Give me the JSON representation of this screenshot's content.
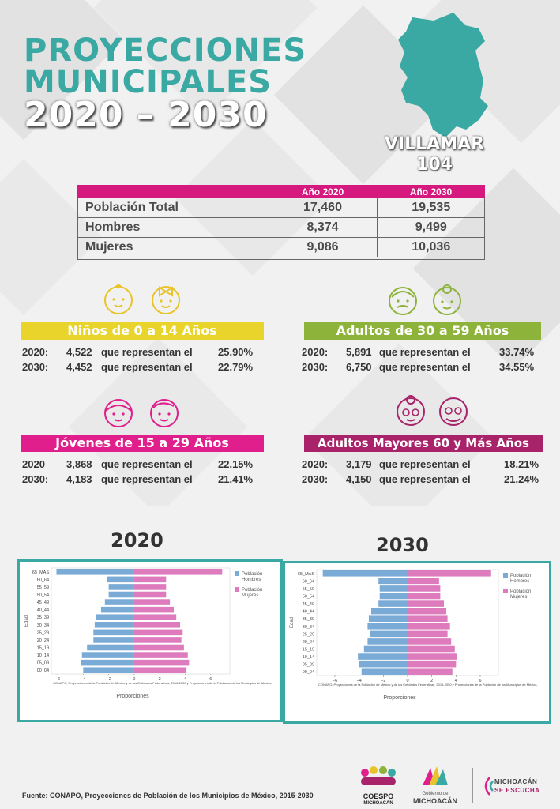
{
  "title": {
    "line1": "PROYECCIONES",
    "line2": "MUNICIPALES",
    "line3": "2020 – 2030"
  },
  "municipality": {
    "name": "VILLAMAR",
    "code": "104"
  },
  "table": {
    "headers": [
      "Año 2020",
      "Año 2030"
    ],
    "rows": [
      {
        "label": "Población Total",
        "y2020": "17,460",
        "y2030": "19,535"
      },
      {
        "label": "Hombres",
        "y2020": "8,374",
        "y2030": "9,499"
      },
      {
        "label": "Mujeres",
        "y2020": "9,086",
        "y2030": "10,036"
      }
    ]
  },
  "groups": [
    {
      "title": "Niños de 0 a 14 Años",
      "color": "#e8d42a",
      "lines": [
        {
          "year": "2020:",
          "count": "4,522",
          "text": "que representan el",
          "pct": "25.90%"
        },
        {
          "year": "2030:",
          "count": "4,452",
          "text": "que representan el",
          "pct": "22.79%"
        }
      ]
    },
    {
      "title": "Adultos de 30 a 59 Años",
      "color": "#8db33a",
      "lines": [
        {
          "year": "2020:",
          "count": "5,891",
          "text": "que representan el",
          "pct": "33.74%"
        },
        {
          "year": "2030:",
          "count": "6,750",
          "text": "que representan el",
          "pct": "34.55%"
        }
      ]
    },
    {
      "title": "Jóvenes de 15 a 29 Años",
      "color": "#e01e8c",
      "lines": [
        {
          "year": "2020",
          "count": "3,868",
          "text": "que representan el",
          "pct": "22.15%"
        },
        {
          "year": "2030:",
          "count": "4,183",
          "text": "que representan el",
          "pct": "21.41%"
        }
      ]
    },
    {
      "title": "Adultos Mayores  60 y Más Años",
      "color": "#a8236a",
      "lines": [
        {
          "year": "2020:",
          "count": "3,179",
          "text": "que representan el",
          "pct": "18.21%"
        },
        {
          "year": "2030:",
          "count": "4,150",
          "text": "que representan el",
          "pct": "21.24%"
        }
      ]
    }
  ],
  "pyramid_year_labels": [
    "2020",
    "2030"
  ],
  "chart_data": [
    {
      "type": "bar",
      "orientation": "horizontal",
      "year": "2020",
      "categories": [
        "65_MAS",
        "60_64",
        "55_59",
        "50_54",
        "45_49",
        "40_44",
        "35_39",
        "30_34",
        "25_29",
        "20_24",
        "15_19",
        "10_14",
        "05_09",
        "00_04"
      ],
      "series": [
        {
          "name": "Población Hombres",
          "color": "#7aaad6",
          "values": [
            -6.1,
            -2.1,
            -2.0,
            -2.0,
            -2.3,
            -2.6,
            -3.0,
            -3.1,
            -3.2,
            -3.2,
            -3.7,
            -4.1,
            -4.2,
            -4.0
          ]
        },
        {
          "name": "Población Mujeres",
          "color": "#dd7bbd",
          "values": [
            6.9,
            2.5,
            2.5,
            2.5,
            2.8,
            3.1,
            3.3,
            3.6,
            3.8,
            3.7,
            3.9,
            4.2,
            4.3,
            4.1
          ]
        }
      ],
      "xlabel": "Proporciones",
      "ylabel": "Edad",
      "xlim": [
        -6.5,
        7.5
      ],
      "xticks": [
        "−6",
        "−4",
        "−2",
        "0",
        "2",
        "4",
        "6"
      ],
      "note": "CONAPO, Proyecciones de la Población de México y de las Entidades Federativas, 2016-2050 y Proyecciones de la Población de los Municipios de México,"
    },
    {
      "type": "bar",
      "orientation": "horizontal",
      "year": "2030",
      "categories": [
        "65_MAS",
        "60_64",
        "55_59",
        "50_54",
        "45_49",
        "40_44",
        "35_39",
        "30_34",
        "25_29",
        "20_24",
        "15_19",
        "10_14",
        "05_09",
        "00_04"
      ],
      "series": [
        {
          "name": "Población Hombres",
          "color": "#7aaad6",
          "values": [
            -7.0,
            -2.4,
            -2.3,
            -2.3,
            -2.4,
            -3.0,
            -3.2,
            -3.3,
            -3.1,
            -3.3,
            -3.6,
            -4.1,
            -4.0,
            -3.8
          ]
        },
        {
          "name": "Población Mujeres",
          "color": "#dd7bbd",
          "values": [
            6.9,
            2.6,
            2.7,
            2.7,
            3.0,
            3.2,
            3.3,
            3.5,
            3.3,
            3.6,
            3.9,
            4.1,
            4.0,
            3.7
          ]
        }
      ],
      "xlabel": "Proporciones",
      "ylabel": "Edad",
      "xlim": [
        -7.5,
        7.5
      ],
      "xticks": [
        "−6",
        "−4",
        "−2",
        "0",
        "2",
        "4",
        "6"
      ],
      "note": "CONAPO, Proyecciones de la Población de México y de las Entidades Federativas, 2016-2050 y Proyecciones de la Población de los Municipios de México,"
    }
  ],
  "footer": "Fuente: CONAPO, Proyecciones de Población de los Municipios de México, 2015-2030",
  "logos": {
    "coespo": "COESPO",
    "coespo_sub": "MICHOACÁN",
    "gob_small": "Gobierno de",
    "gob": "MICHOACÁN",
    "slogan1": "MICHOACÁN",
    "slogan2": "SE ESCUCHA"
  }
}
